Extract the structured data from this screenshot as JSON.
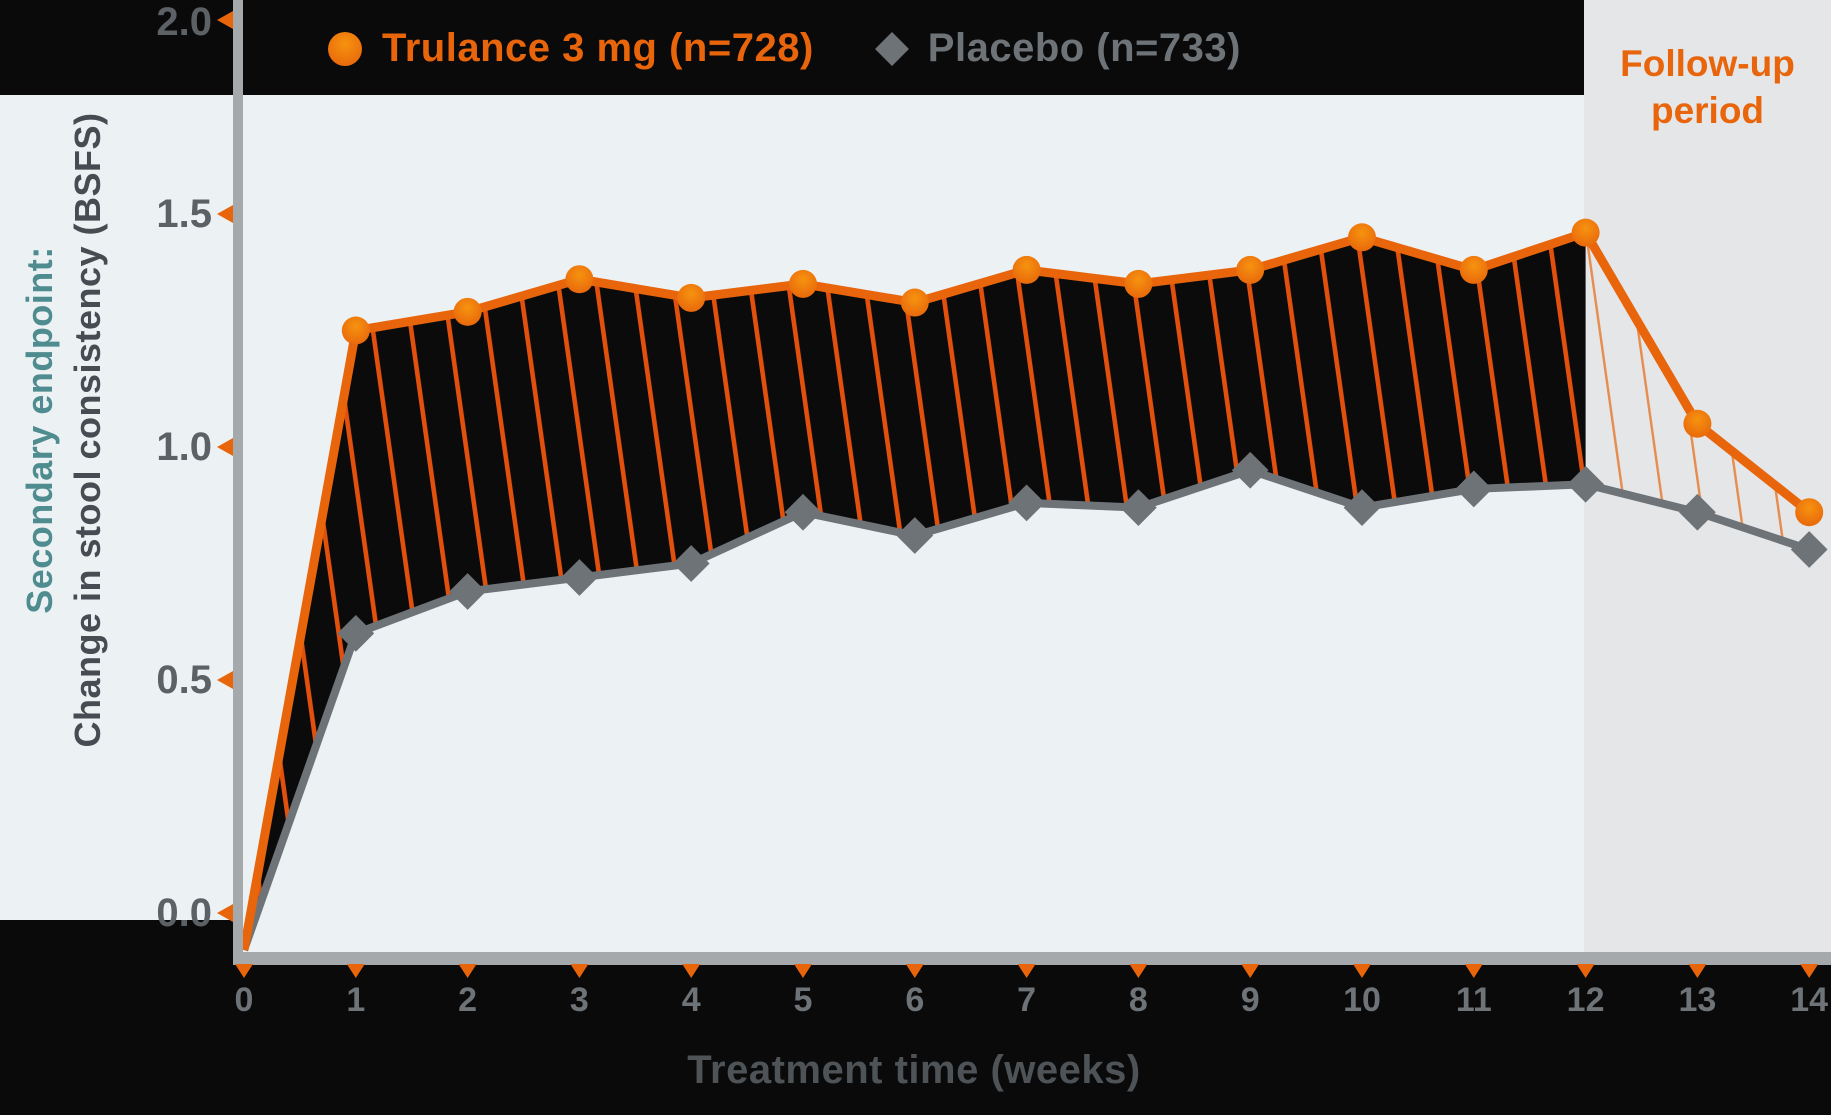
{
  "legend": {
    "trulance": {
      "label": "Trulance 3 mg (n=728)",
      "marker": "circle-icon",
      "color": "#e8650c"
    },
    "placebo": {
      "label": "Placebo (n=733)",
      "marker": "diamond-icon",
      "color": "#6e7378"
    }
  },
  "annotations": {
    "follow_up_line1": "Follow-up",
    "follow_up_line2": "period"
  },
  "y_axis": {
    "title_line1": "Secondary endpoint:",
    "title_line2": "Change in stool consistency (BSFS)",
    "tick_labels": [
      "2.0",
      "1.5",
      "1.0",
      "0.5",
      "0.0"
    ],
    "tick_values": [
      2.0,
      1.5,
      1.0,
      0.5,
      0.0
    ]
  },
  "x_axis": {
    "title": "Treatment time (weeks)",
    "tick_labels": [
      "0",
      "1",
      "2",
      "3",
      "4",
      "5",
      "6",
      "7",
      "8",
      "9",
      "10",
      "11",
      "12",
      "13",
      "14"
    ],
    "tick_values": [
      0,
      1,
      2,
      3,
      4,
      5,
      6,
      7,
      8,
      9,
      10,
      11,
      12,
      13,
      14
    ]
  },
  "chart_data": {
    "type": "line",
    "x": [
      0,
      1,
      2,
      3,
      4,
      5,
      6,
      7,
      8,
      9,
      10,
      11,
      12,
      13,
      14
    ],
    "xlabel": "Treatment time (weeks)",
    "ylabel": "Secondary endpoint: Change in stool consistency (BSFS)",
    "xlim": [
      0,
      14
    ],
    "ylim": [
      0,
      2.0
    ],
    "grid": false,
    "legend_position": "top",
    "series": [
      {
        "name": "Trulance 3 mg (n=728)",
        "marker": "circle",
        "color": "#e8650c",
        "values": [
          0,
          1.25,
          1.29,
          1.36,
          1.32,
          1.35,
          1.31,
          1.38,
          1.35,
          1.38,
          1.45,
          1.38,
          1.46,
          1.05,
          0.86
        ]
      },
      {
        "name": "Placebo (n=733)",
        "marker": "diamond",
        "color": "#6e7378",
        "values": [
          0,
          0.6,
          0.69,
          0.72,
          0.75,
          0.86,
          0.81,
          0.88,
          0.87,
          0.95,
          0.87,
          0.91,
          0.92,
          0.86,
          0.78
        ]
      }
    ],
    "hatched_region": {
      "between": "Trulance and Placebo lines",
      "from_week": 0,
      "to_week": 12,
      "style": "black fill with diagonal orange stripes"
    },
    "follow_up_period": {
      "from_week": 12,
      "to_week": 14,
      "style": "thin orange diagonal hairlines between lines"
    }
  },
  "colors": {
    "accent_orange": "#e8650c",
    "hatch_stripe": "#e2500e",
    "placebo_gray": "#6e7378",
    "teal": "#4f8c8f",
    "dark_text": "#454d52",
    "tick_text": "#5c6166",
    "axis_bar": "#a5a9ac",
    "plot_bg": "#ecf1f4",
    "followup_bg": "#e4e6e8",
    "page_bg": "#0a0a0b"
  }
}
